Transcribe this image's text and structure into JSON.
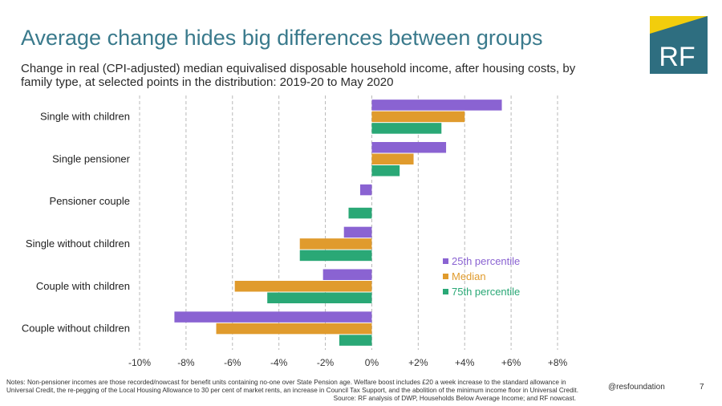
{
  "slide": {
    "title": "Average change hides big differences between groups",
    "subtitle": "Change in real (CPI-adjusted) median equivalised disposable household income, after housing costs, by family type, at selected points in the distribution: 2019-20 to May 2020",
    "logo_text": "RF",
    "notes": "Notes: Non-pensioner incomes are those recorded/nowcast for benefit units containing no-one over State Pension age. Welfare boost includes £20 a week increase to the standard allowance in Universal Credit, the re-pegging of the Local Housing Allowance to 30 per cent of market rents, an increase in Council Tax Support, and the abolition of the minimum income floor in Universal Credit.",
    "source": "Source: RF analysis of DWP, Households Below Average Income; and RF nowcast.",
    "handle": "@resfoundation",
    "page_number": "7"
  },
  "colors": {
    "title": "#3a7a8c",
    "logo_bg": "#2e6e80",
    "logo_accent": "#f2cd0c",
    "p25": "#8a63d2",
    "median": "#e09b2d",
    "p75": "#2aa876",
    "grid": "#b8b8b8"
  },
  "chart_data": {
    "type": "bar",
    "orientation": "horizontal",
    "categories": [
      "Single with children",
      "Single pensioner",
      "Pensioner couple",
      "Single without children",
      "Couple with children",
      "Couple without children"
    ],
    "series": [
      {
        "name": "25th percentile",
        "color_key": "p25",
        "values": [
          5.6,
          3.2,
          -0.5,
          -1.2,
          -2.1,
          -8.5
        ]
      },
      {
        "name": "Median",
        "color_key": "median",
        "values": [
          4.0,
          1.8,
          0.0,
          -3.1,
          -5.9,
          -6.7
        ]
      },
      {
        "name": "75th percentile",
        "color_key": "p75",
        "values": [
          3.0,
          1.2,
          -1.0,
          -3.1,
          -4.5,
          -1.4
        ]
      }
    ],
    "xlim": [
      -10,
      8
    ],
    "xticks": [
      -10,
      -8,
      -6,
      -4,
      -2,
      0,
      2,
      4,
      6,
      8
    ],
    "xtick_labels": [
      "-10%",
      "-8%",
      "-6%",
      "-4%",
      "-2%",
      "0%",
      "+2%",
      "+4%",
      "+6%",
      "+8%"
    ],
    "grid": true,
    "legend_position": "bottom-right"
  }
}
